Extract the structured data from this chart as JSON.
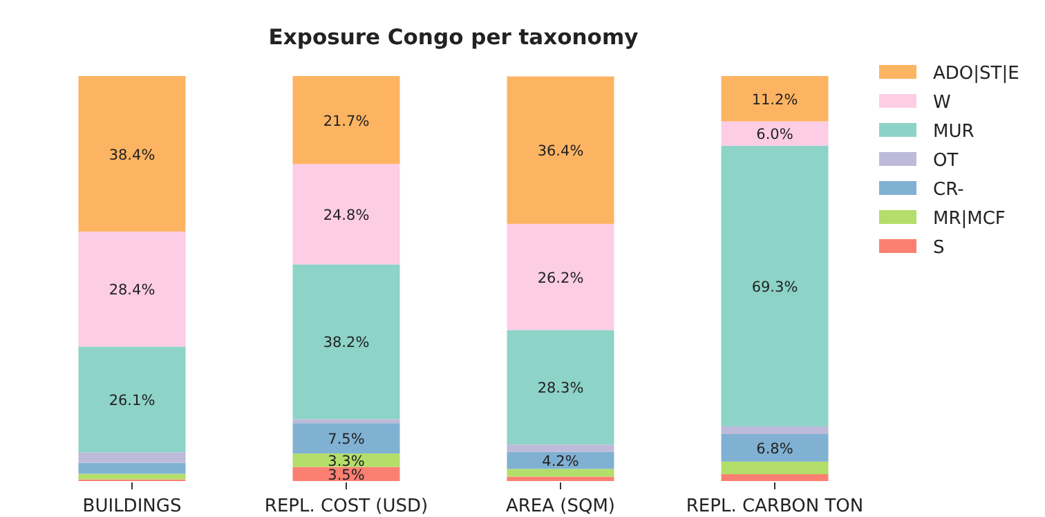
{
  "chart_data": {
    "type": "bar",
    "title": "Exposure Congo per taxonomy",
    "stacked": true,
    "legend": "right",
    "categories": [
      "BUILDINGS",
      "REPL. COST (USD)",
      "AREA (SQM)",
      "REPL. CARBON TON"
    ],
    "series": [
      {
        "name": "S",
        "color": "#fb8072",
        "values": [
          0.4,
          3.5,
          1.1,
          1.7
        ],
        "value_labels": [
          null,
          "3.5%",
          null,
          null
        ]
      },
      {
        "name": "MR|MCF",
        "color": "#b3de69",
        "values": [
          1.4,
          3.3,
          1.9,
          3.1
        ],
        "value_labels": [
          null,
          "3.3%",
          null,
          null
        ]
      },
      {
        "name": "CR-",
        "color": "#80b1d3",
        "values": [
          2.7,
          7.5,
          4.2,
          6.8
        ],
        "value_labels": [
          null,
          "7.5%",
          "4.2%",
          "6.8%"
        ]
      },
      {
        "name": "OT",
        "color": "#bebada",
        "values": [
          2.6,
          1.0,
          1.8,
          1.9
        ],
        "value_labels": [
          null,
          null,
          null,
          null
        ]
      },
      {
        "name": "MUR",
        "color": "#8dd3c7",
        "values": [
          26.1,
          38.2,
          28.3,
          69.3
        ],
        "value_labels": [
          "26.1%",
          "38.2%",
          "28.3%",
          "69.3%"
        ]
      },
      {
        "name": "W",
        "color": "#fccde5",
        "values": [
          28.4,
          24.8,
          26.2,
          6.0
        ],
        "value_labels": [
          "28.4%",
          "24.8%",
          "26.2%",
          "6.0%"
        ]
      },
      {
        "name": "ADO|ST|E",
        "color": "#fdb462",
        "values": [
          38.4,
          21.7,
          36.4,
          11.2
        ],
        "value_labels": [
          "38.4%",
          "21.7%",
          "36.4%",
          "11.2%"
        ]
      }
    ]
  }
}
